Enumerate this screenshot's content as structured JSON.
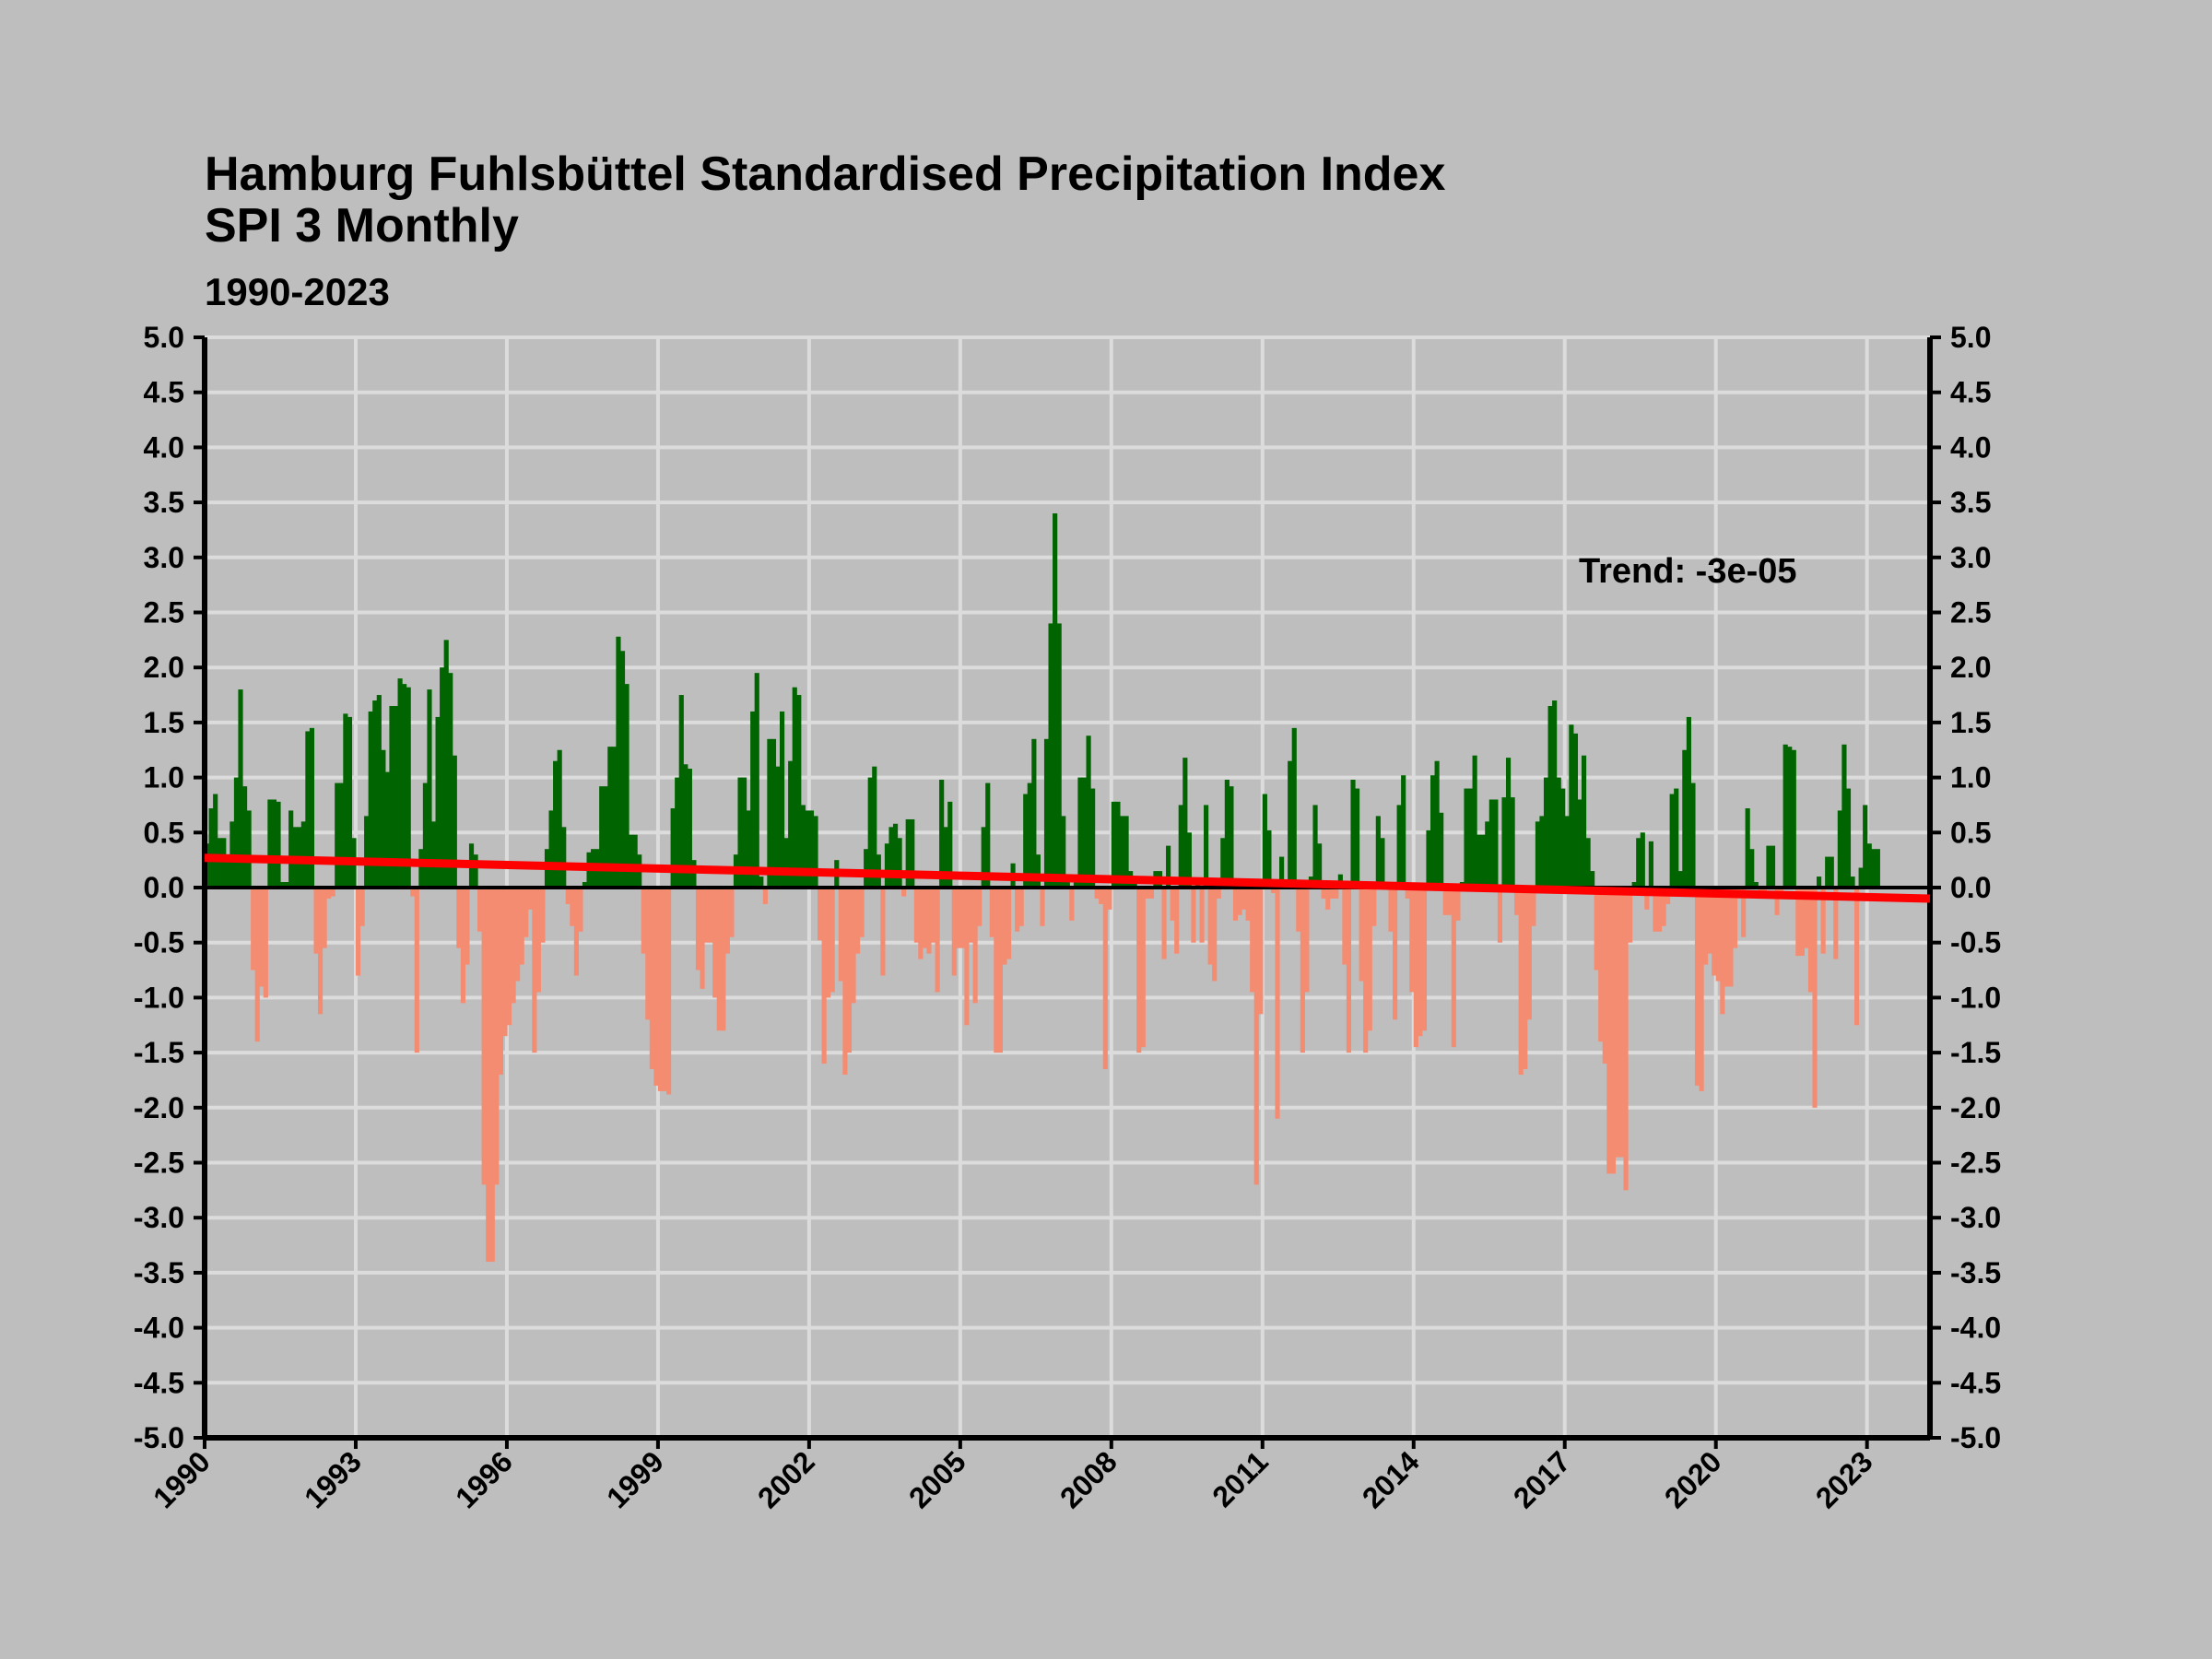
{
  "chart_data": {
    "type": "bar",
    "title_lines": [
      "Hamburg Fuhlsbüttel Standardised Precipitation Index",
      "SPI 3 Monthly"
    ],
    "subtitle": "1990-2023",
    "xlabel": "",
    "ylabel": "",
    "xlim": [
      1990,
      2024.25
    ],
    "ylim": [
      -5.0,
      5.0
    ],
    "x_ticks": [
      "1990",
      "1993",
      "1996",
      "1999",
      "2002",
      "2005",
      "2008",
      "2011",
      "2014",
      "2017",
      "2020",
      "2023"
    ],
    "y_ticks": [
      "5.0",
      "4.5",
      "4.0",
      "3.5",
      "3.0",
      "2.5",
      "2.0",
      "1.5",
      "1.0",
      "0.5",
      "0.0",
      "-0.5",
      "-1.0",
      "-1.5",
      "-2.0",
      "-2.5",
      "-3.0",
      "-3.5",
      "-4.0",
      "-4.5",
      "-5.0"
    ],
    "grid": true,
    "colors": {
      "positive": "#006400",
      "negative": "#f48c72",
      "trend": "#ff0000",
      "grid": "#dcdcdc",
      "zero": "#000000"
    },
    "trend_label": "Trend: -3e-05",
    "trend_line": {
      "start": 0.27,
      "end": -0.1
    },
    "series": [
      {
        "name": "SPI 3 Monthly",
        "start": "1990-01",
        "frequency": "monthly",
        "values": [
          0.4,
          0.72,
          0.85,
          0.45,
          0.45,
          0.3,
          0.6,
          1.0,
          1.8,
          0.92,
          0.7,
          -0.75,
          -1.4,
          -0.9,
          -1.0,
          0.8,
          0.8,
          0.78,
          0.05,
          0.05,
          0.7,
          0.55,
          0.55,
          0.6,
          1.42,
          1.45,
          -0.6,
          -1.15,
          -0.55,
          -0.1,
          -0.08,
          0.95,
          0.95,
          1.58,
          1.55,
          0.45,
          -0.8,
          -0.35,
          0.65,
          1.6,
          1.7,
          1.75,
          1.25,
          1.05,
          1.65,
          1.65,
          1.9,
          1.85,
          1.82,
          -0.08,
          -1.5,
          0.35,
          0.95,
          1.8,
          0.6,
          1.55,
          2.0,
          2.25,
          1.95,
          1.2,
          -0.55,
          -1.05,
          -0.7,
          0.4,
          0.3,
          -0.4,
          -2.7,
          -3.4,
          -3.4,
          -2.7,
          -1.7,
          -1.35,
          -1.25,
          -1.05,
          -0.85,
          -0.7,
          -0.45,
          -0.2,
          -1.5,
          -0.95,
          -0.5,
          0.35,
          0.7,
          1.15,
          1.25,
          0.55,
          -0.15,
          -0.35,
          -0.8,
          -0.4,
          0.05,
          0.32,
          0.35,
          0.35,
          0.92,
          0.92,
          1.28,
          1.28,
          2.28,
          2.15,
          1.85,
          0.48,
          0.48,
          0.3,
          -0.6,
          -1.2,
          -1.65,
          -1.8,
          -1.85,
          -1.85,
          -1.88,
          0.72,
          1.0,
          1.75,
          1.12,
          1.08,
          0.25,
          -0.75,
          -0.92,
          -0.5,
          -0.5,
          -1.0,
          -1.3,
          -1.3,
          -0.6,
          -0.45,
          0.3,
          1.0,
          1.0,
          0.7,
          1.6,
          1.95,
          0.1,
          -0.15,
          1.35,
          1.35,
          1.1,
          1.6,
          0.45,
          1.15,
          1.82,
          1.75,
          0.75,
          0.7,
          0.7,
          0.65,
          -0.48,
          -1.6,
          -1.0,
          -0.95,
          0.25,
          -0.85,
          -1.7,
          -1.5,
          -1.05,
          -0.6,
          -0.45,
          0.35,
          1.0,
          1.1,
          0.3,
          -0.8,
          0.4,
          0.55,
          0.58,
          0.45,
          -0.08,
          0.62,
          0.62,
          -0.5,
          -0.65,
          -0.55,
          -0.6,
          -0.5,
          -0.95,
          0.98,
          0.55,
          0.78,
          -0.8,
          -0.55,
          -0.55,
          -1.25,
          -0.5,
          -1.05,
          -0.35,
          0.55,
          0.95,
          -0.45,
          -1.5,
          -1.5,
          -0.7,
          -0.65,
          0.22,
          -0.4,
          -0.35,
          0.85,
          0.95,
          1.35,
          0.3,
          -0.35,
          1.35,
          2.4,
          3.4,
          2.4,
          0.65,
          0.05,
          -0.3,
          0.1,
          1.0,
          1.0,
          1.38,
          0.9,
          -0.1,
          -0.15,
          -1.65,
          -0.2,
          0.78,
          0.78,
          0.65,
          0.65,
          0.15,
          0.1,
          -1.5,
          -1.45,
          -0.1,
          -0.1,
          0.15,
          0.15,
          -0.65,
          0.38,
          -0.3,
          -0.6,
          0.75,
          1.18,
          0.5,
          -0.5,
          0.05,
          -0.5,
          0.75,
          -0.7,
          -0.85,
          -0.1,
          0.45,
          0.98,
          0.92,
          -0.3,
          -0.25,
          -0.2,
          -0.3,
          -0.95,
          -2.7,
          -1.15,
          0.85,
          0.52,
          -0.05,
          -2.1,
          0.28,
          0.05,
          1.15,
          1.45,
          -0.4,
          -1.5,
          -0.95,
          0.1,
          0.75,
          0.4,
          -0.1,
          -0.2,
          -0.1,
          -0.1,
          0.12,
          -0.7,
          -1.5,
          0.98,
          0.9,
          -0.85,
          -1.5,
          -1.3,
          -0.35,
          0.65,
          0.45,
          0.05,
          -0.4,
          -1.2,
          0.75,
          1.02,
          -0.1,
          -0.95,
          -1.45,
          -1.35,
          -1.3,
          0.52,
          1.02,
          1.15,
          0.68,
          -0.25,
          -0.25,
          -1.45,
          -0.3,
          0.05,
          0.9,
          0.9,
          1.2,
          0.48,
          0.48,
          0.6,
          0.8,
          0.8,
          -0.5,
          0.82,
          1.18,
          0.82,
          -0.25,
          -1.7,
          -1.65,
          -1.2,
          -0.35,
          0.6,
          0.65,
          1.0,
          1.65,
          1.7,
          1.0,
          0.9,
          0.65,
          1.48,
          1.4,
          0.8,
          1.2,
          0.45,
          0.15,
          -0.75,
          -1.4,
          -1.6,
          -2.6,
          -2.6,
          -2.45,
          -2.45,
          -2.75,
          -0.5,
          0.05,
          0.45,
          0.5,
          -0.2,
          0.42,
          -0.4,
          -0.4,
          -0.35,
          -0.15,
          0.85,
          0.9,
          0.15,
          1.25,
          1.55,
          0.95,
          -1.8,
          -1.85,
          -0.7,
          -0.6,
          -0.8,
          -0.85,
          -1.15,
          -0.9,
          -0.9,
          -0.55,
          -0.1,
          -0.45,
          0.72,
          0.35,
          0.05,
          -0.1,
          -0.1,
          0.38,
          0.38,
          -0.25,
          -0.05,
          1.3,
          1.28,
          1.25,
          -0.62,
          -0.62,
          -0.55,
          -0.95,
          -2.0,
          0.1,
          -0.6,
          0.28,
          0.28,
          -0.65,
          0.7,
          1.3,
          0.9,
          0.1,
          -1.25,
          0.18,
          0.75,
          0.4,
          0.35,
          0.35
        ]
      }
    ]
  }
}
